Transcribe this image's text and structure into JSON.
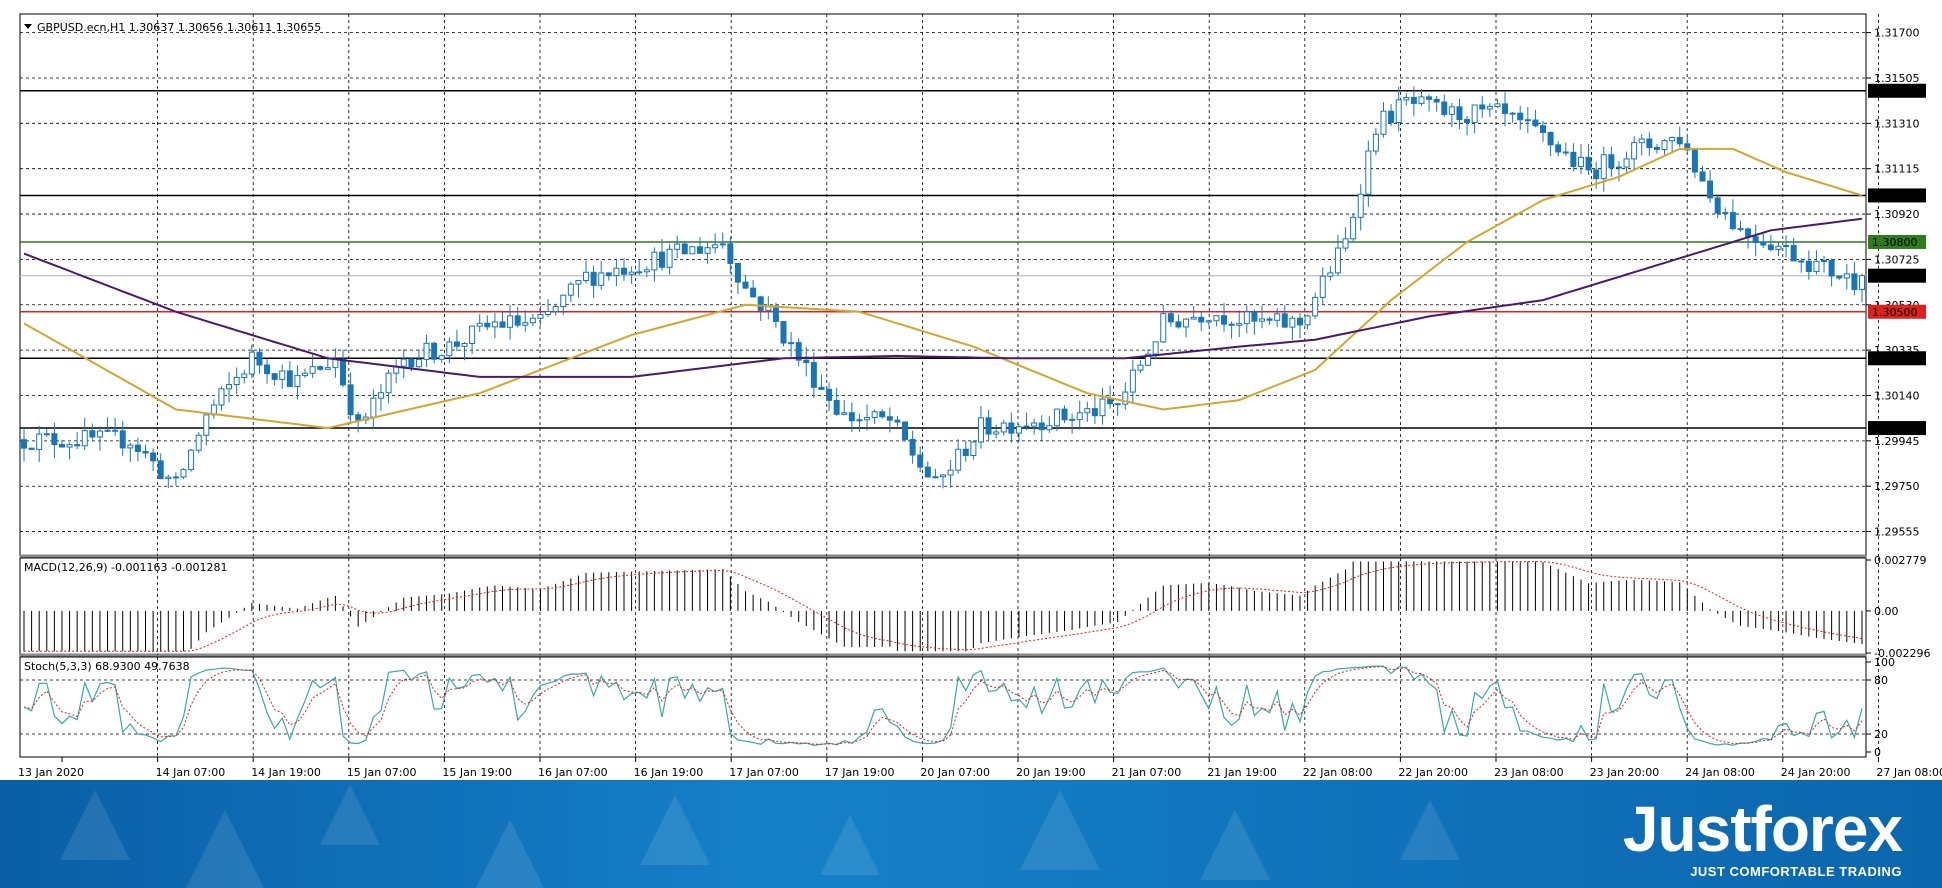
{
  "header": {
    "symbol_text": "GBPUSD.ecn,H1  1.30637 1.30656 1.30611 1.30655",
    "macd_text": "MACD(12,26,9) -0.001163 -0.001281",
    "stoch_text": "Stoch(5,3,3) 68.9300 49.7638"
  },
  "colors": {
    "candle": "#1a75b8",
    "ma_fast": "#d4a630",
    "ma_slow": "#4a1a6e",
    "level_black": "#000000",
    "level_red": "#e0201c",
    "level_green": "#2e7d1a",
    "macd_signal": "#e0201c",
    "stoch_main": "#3aa8a8",
    "stoch_signal": "#e0201c",
    "banner": "#0d6bb3"
  },
  "chart_data": {
    "type": "candlestick",
    "symbol": "GBPUSD.ecn",
    "timeframe": "H1",
    "ylim": [
      1.2945,
      1.3178
    ],
    "y_ticks": [
      "1.31700",
      "1.31505",
      "1.31310",
      "1.31115",
      "1.30920",
      "1.30725",
      "1.30530",
      "1.30335",
      "1.30140",
      "1.29945",
      "1.29750",
      "1.29555"
    ],
    "x_ticks": [
      "13 Jan 2020",
      "14 Jan 07:00",
      "14 Jan 19:00",
      "15 Jan 07:00",
      "15 Jan 19:00",
      "16 Jan 07:00",
      "16 Jan 19:00",
      "17 Jan 07:00",
      "17 Jan 19:00",
      "20 Jan 07:00",
      "20 Jan 19:00",
      "21 Jan 07:00",
      "21 Jan 19:00",
      "22 Jan 08:00",
      "22 Jan 20:00",
      "23 Jan 08:00",
      "23 Jan 20:00",
      "24 Jan 08:00",
      "24 Jan 20:00",
      "27 Jan 08:00"
    ],
    "levels": [
      {
        "label": "1.31450",
        "value": 1.3145,
        "color": "black"
      },
      {
        "label": "1.31000",
        "value": 1.31,
        "color": "black"
      },
      {
        "label": "1.30800",
        "value": 1.308,
        "color": "green"
      },
      {
        "label": "1.30500",
        "value": 1.305,
        "color": "red"
      },
      {
        "label": "1.30300",
        "value": 1.303,
        "color": "black"
      },
      {
        "label": "1.30000",
        "value": 1.3,
        "color": "black"
      }
    ],
    "current_price": {
      "label": "1.30655",
      "value": 1.30655
    },
    "price_anchors": [
      [
        0,
        1.2995
      ],
      [
        10,
        1.2995
      ],
      [
        14,
        1.2995
      ],
      [
        20,
        1.2975
      ],
      [
        24,
        1.3005
      ],
      [
        30,
        1.303
      ],
      [
        36,
        1.302
      ],
      [
        41,
        1.303
      ],
      [
        44,
        1.3
      ],
      [
        50,
        1.303
      ],
      [
        56,
        1.3035
      ],
      [
        62,
        1.3045
      ],
      [
        68,
        1.3045
      ],
      [
        74,
        1.3065
      ],
      [
        80,
        1.307
      ],
      [
        86,
        1.3075
      ],
      [
        92,
        1.308
      ],
      [
        95,
        1.306
      ],
      [
        98,
        1.305
      ],
      [
        102,
        1.303
      ],
      [
        108,
        1.3005
      ],
      [
        114,
        1.3003
      ],
      [
        120,
        1.2975
      ],
      [
        126,
        1.3
      ],
      [
        132,
        1.3003
      ],
      [
        138,
        1.3005
      ],
      [
        144,
        1.301
      ],
      [
        150,
        1.3045
      ],
      [
        156,
        1.305
      ],
      [
        162,
        1.3045
      ],
      [
        168,
        1.3045
      ],
      [
        174,
        1.308
      ],
      [
        178,
        1.313
      ],
      [
        182,
        1.314
      ],
      [
        188,
        1.3135
      ],
      [
        194,
        1.3135
      ],
      [
        200,
        1.3125
      ],
      [
        206,
        1.311
      ],
      [
        212,
        1.312
      ],
      [
        218,
        1.3125
      ],
      [
        222,
        1.31
      ],
      [
        226,
        1.3085
      ],
      [
        230,
        1.308
      ],
      [
        236,
        1.307
      ],
      [
        242,
        1.3062
      ]
    ],
    "ma_fast_anchors": [
      [
        0,
        1.3045
      ],
      [
        20,
        1.3008
      ],
      [
        40,
        1.3
      ],
      [
        60,
        1.3015
      ],
      [
        80,
        1.304
      ],
      [
        95,
        1.3053
      ],
      [
        110,
        1.305
      ],
      [
        125,
        1.3035
      ],
      [
        140,
        1.3015
      ],
      [
        150,
        1.3008
      ],
      [
        160,
        1.3012
      ],
      [
        170,
        1.3025
      ],
      [
        180,
        1.3055
      ],
      [
        190,
        1.308
      ],
      [
        200,
        1.3098
      ],
      [
        210,
        1.3108
      ],
      [
        218,
        1.312
      ],
      [
        225,
        1.312
      ],
      [
        232,
        1.311
      ],
      [
        242,
        1.31
      ]
    ],
    "ma_slow_anchors": [
      [
        0,
        1.3075
      ],
      [
        20,
        1.305
      ],
      [
        40,
        1.303
      ],
      [
        60,
        1.3022
      ],
      [
        80,
        1.3022
      ],
      [
        100,
        1.303
      ],
      [
        115,
        1.3031
      ],
      [
        130,
        1.303
      ],
      [
        145,
        1.303
      ],
      [
        160,
        1.3035
      ],
      [
        170,
        1.3038
      ],
      [
        185,
        1.3048
      ],
      [
        200,
        1.3055
      ],
      [
        215,
        1.307
      ],
      [
        230,
        1.3085
      ],
      [
        242,
        1.309
      ]
    ],
    "macd": {
      "ylim": [
        -0.002296,
        0.002779
      ],
      "ticks": [
        "0.002779",
        "0.00",
        "-0.002296"
      ]
    },
    "stoch": {
      "ylim": [
        0,
        100
      ],
      "ticks": [
        "100",
        "80",
        "20",
        "0"
      ],
      "levels": [
        80,
        20
      ]
    }
  }
}
